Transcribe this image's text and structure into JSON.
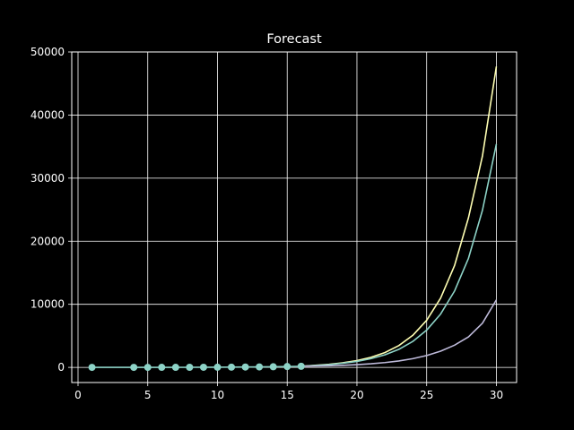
{
  "chart_data": {
    "type": "line",
    "title": "Forecast",
    "xlabel": "",
    "ylabel": "",
    "xlim": [
      -0.45,
      31.45
    ],
    "ylim": [
      -2400,
      50000
    ],
    "x_ticks": [
      0,
      5,
      10,
      15,
      20,
      25,
      30
    ],
    "y_ticks": [
      0,
      10000,
      20000,
      30000,
      40000,
      50000
    ],
    "grid": true,
    "legend": "none",
    "background": "#000000",
    "grid_color": "#ffffff",
    "observed": {
      "color": "#8dd3c7",
      "points": [
        [
          1,
          0
        ],
        [
          4,
          3
        ],
        [
          5,
          5
        ],
        [
          6,
          7
        ],
        [
          7,
          10
        ],
        [
          8,
          15
        ],
        [
          9,
          20
        ],
        [
          10,
          28
        ],
        [
          11,
          38
        ],
        [
          12,
          52
        ],
        [
          13,
          70
        ],
        [
          14,
          95
        ],
        [
          15,
          130
        ],
        [
          16,
          175
        ]
      ]
    },
    "series": [
      {
        "color": "#ffffb3",
        "x": [
          16,
          17,
          18,
          19,
          20,
          21,
          22,
          23,
          24,
          25,
          26,
          27,
          28,
          29,
          30
        ],
        "values": [
          175,
          320,
          490,
          730,
          1080,
          1590,
          2340,
          3450,
          5070,
          7460,
          10970,
          16140,
          23730,
          33500,
          47700
        ]
      },
      {
        "color": "#8dd3c7",
        "x": [
          16,
          17,
          18,
          19,
          20,
          21,
          22,
          23,
          24,
          25,
          26,
          27,
          28,
          29,
          30
        ],
        "values": [
          175,
          290,
          440,
          660,
          950,
          1380,
          1980,
          2850,
          4100,
          5900,
          8450,
          12100,
          17300,
          24900,
          35400
        ]
      },
      {
        "color": "#bebada",
        "x": [
          16,
          17,
          18,
          19,
          20,
          21,
          22,
          23,
          24,
          25,
          26,
          27,
          28,
          29,
          30
        ],
        "values": [
          175,
          210,
          260,
          330,
          430,
          570,
          760,
          1020,
          1380,
          1880,
          2570,
          3520,
          4840,
          7000,
          10700
        ]
      }
    ]
  }
}
